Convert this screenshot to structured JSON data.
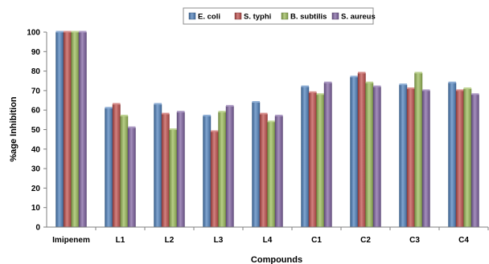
{
  "chart_data": {
    "type": "bar",
    "title": "",
    "xlabel": "Compounds",
    "ylabel": "%age Inhibition",
    "ylim": [
      0,
      100
    ],
    "yticks": [
      0,
      10,
      20,
      30,
      40,
      50,
      60,
      70,
      80,
      90,
      100
    ],
    "grid": false,
    "legend_position": "top-center",
    "categories": [
      "Imipenem",
      "L1",
      "L2",
      "L3",
      "L4",
      "C1",
      "C2",
      "C3",
      "C4"
    ],
    "series": [
      {
        "name": "E. coli",
        "color": "#4f81bd",
        "values": [
          100,
          61,
          63,
          57,
          64,
          72,
          77,
          73,
          74
        ]
      },
      {
        "name": "S. typhi",
        "color": "#c0504d",
        "values": [
          100,
          63,
          58,
          49,
          58,
          69,
          79,
          71,
          70
        ]
      },
      {
        "name": "B. subtilis",
        "color": "#9bbb59",
        "values": [
          100,
          57,
          50,
          59,
          54,
          68,
          74,
          79,
          71
        ]
      },
      {
        "name": "S. aureus",
        "color": "#8064a2",
        "values": [
          100,
          51,
          59,
          62,
          57,
          74,
          72,
          70,
          68
        ]
      }
    ]
  }
}
